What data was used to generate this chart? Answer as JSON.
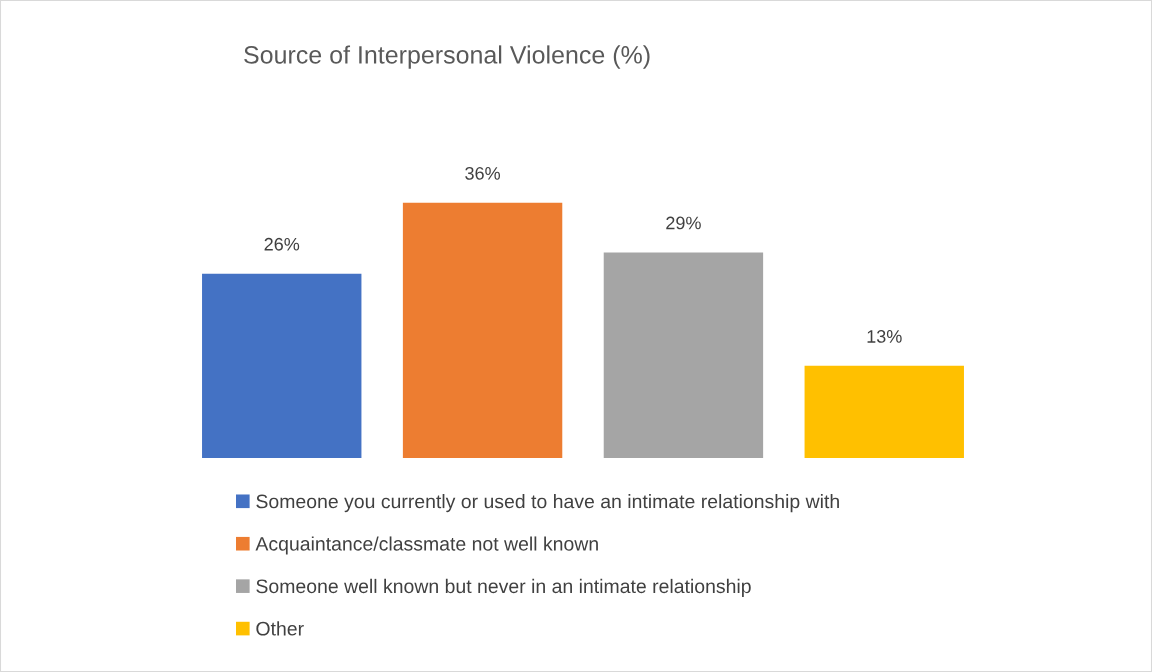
{
  "chart_data": {
    "type": "bar",
    "title": "Source of Interpersonal Violence (%)",
    "categories": [
      null
    ],
    "series": [
      {
        "name": "Someone you currently or used to have an intimate relationship with",
        "color": "#4472c4",
        "values": [
          26
        ],
        "value_labels": [
          "26%"
        ]
      },
      {
        "name": "Acquaintance/classmate not well known",
        "color": "#ed7d31",
        "values": [
          36
        ],
        "value_labels": [
          "36%"
        ]
      },
      {
        "name": "Someone well known but never in an intimate relationship",
        "color": "#a5a5a5",
        "values": [
          29
        ],
        "value_labels": [
          "29%"
        ]
      },
      {
        "name": "Other",
        "color": "#ffc000",
        "values": [
          13
        ],
        "value_labels": [
          "13%"
        ]
      }
    ],
    "tick_labels": false,
    "grid": false,
    "legend": "bottom left"
  }
}
